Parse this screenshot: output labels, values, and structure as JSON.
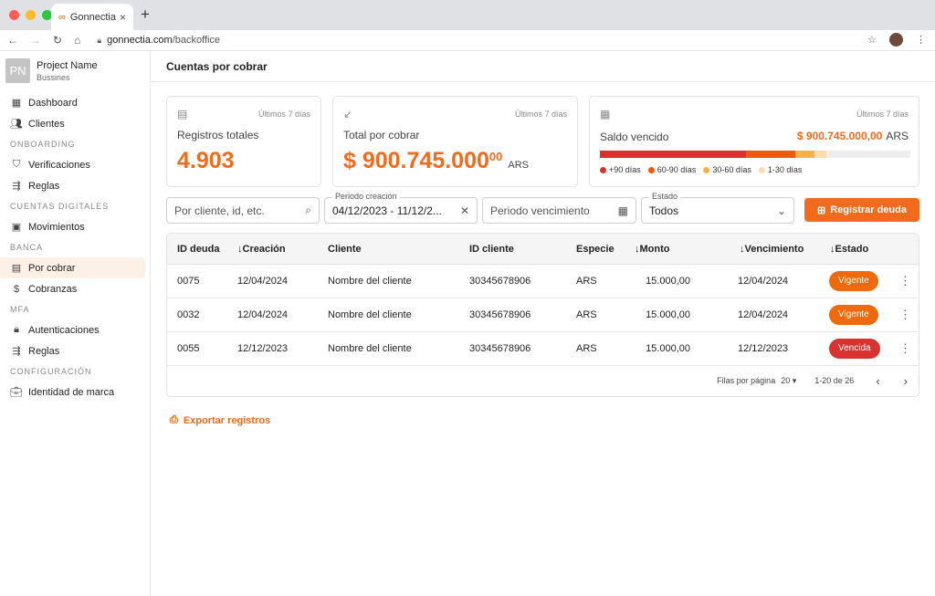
{
  "browser": {
    "tab_title": "Gonnectia",
    "tab_close": "×",
    "new_tab": "+",
    "url_domain": "gonnectia.com",
    "url_path": "/backoffice"
  },
  "sidebar": {
    "project_initials": "PN",
    "project_name": "Project Name",
    "project_sub": "Bussines",
    "items": [
      {
        "label": "Dashboard"
      },
      {
        "label": "Clientes"
      },
      {
        "label": "Verificaciones"
      },
      {
        "label": "Reglas"
      },
      {
        "label": "Movimientos"
      },
      {
        "label": "Por cobrar"
      },
      {
        "label": "Cobranzas"
      },
      {
        "label": "Autenticaciones"
      },
      {
        "label": "Reglas"
      },
      {
        "label": "Identidad de marca"
      }
    ],
    "sections": [
      "ONBOARDING",
      "CUENTAS DIGITALES",
      "BANCA",
      "MFA",
      "CONFIGURACIÓN"
    ]
  },
  "header": {
    "title": "Cuentas por cobrar"
  },
  "cards": {
    "registros": {
      "period": "Últimos 7 días",
      "label": "Registros totales",
      "value": "4.903"
    },
    "total": {
      "period": "Últimos 7 días",
      "label": "Total por cobrar",
      "value": "$ 900.745.000",
      "cents": "00",
      "currency": "ARS"
    },
    "saldo": {
      "period": "Últimos 7 días",
      "label": "Saldo vencido",
      "value": "$ 900.745.000,00",
      "currency": "ARS",
      "legend": [
        "+90 días",
        "60-90 días",
        "30-60 días",
        "1-30 días"
      ],
      "colors": [
        "#d9322f",
        "#ee5a0c",
        "#f9b04a",
        "#fcdcae"
      ],
      "fractions": [
        0.47,
        0.16,
        0.06,
        0.04
      ]
    }
  },
  "filters": {
    "search_placeholder": "Por cliente, id, etc.",
    "periodo_creacion_label": "Periodo creación",
    "periodo_creacion_value": "04/12/2023 - 11/12/2...",
    "periodo_vencimiento_placeholder": "Periodo vencimiento",
    "estado_label": "Estado",
    "estado_value": "Todos"
  },
  "actions": {
    "register_label": "Registrar deuda",
    "export_label": "Exportar registros"
  },
  "table": {
    "headers": [
      "ID deuda",
      "Creación",
      "Cliente",
      "ID cliente",
      "Especie",
      "Monto",
      "Vencimiento",
      "Estado"
    ],
    "rows": [
      {
        "id": "0075",
        "creacion": "12/04/2024",
        "cliente": "Nombre del cliente",
        "id_cliente": "30345678906",
        "especie": "ARS",
        "monto": "15.000,00",
        "vencimiento": "12/04/2024",
        "estado": "Vigente"
      },
      {
        "id": "0032",
        "creacion": "12/04/2024",
        "cliente": "Nombre del cliente",
        "id_cliente": "30345678906",
        "especie": "ARS",
        "monto": "15.000,00",
        "vencimiento": "12/04/2024",
        "estado": "Vigente"
      },
      {
        "id": "0055",
        "creacion": "12/12/2023",
        "cliente": "Nombre del cliente",
        "id_cliente": "30345678906",
        "especie": "ARS",
        "monto": "15.000,00",
        "vencimiento": "12/12/2023",
        "estado": "Vencida"
      }
    ],
    "status_colors": {
      "Vigente": "#ee6a0c",
      "Vencida": "#d9322f"
    },
    "rows_per_page_label": "Filas por página",
    "rows_per_page": "20",
    "range": "1-20 de 26"
  }
}
